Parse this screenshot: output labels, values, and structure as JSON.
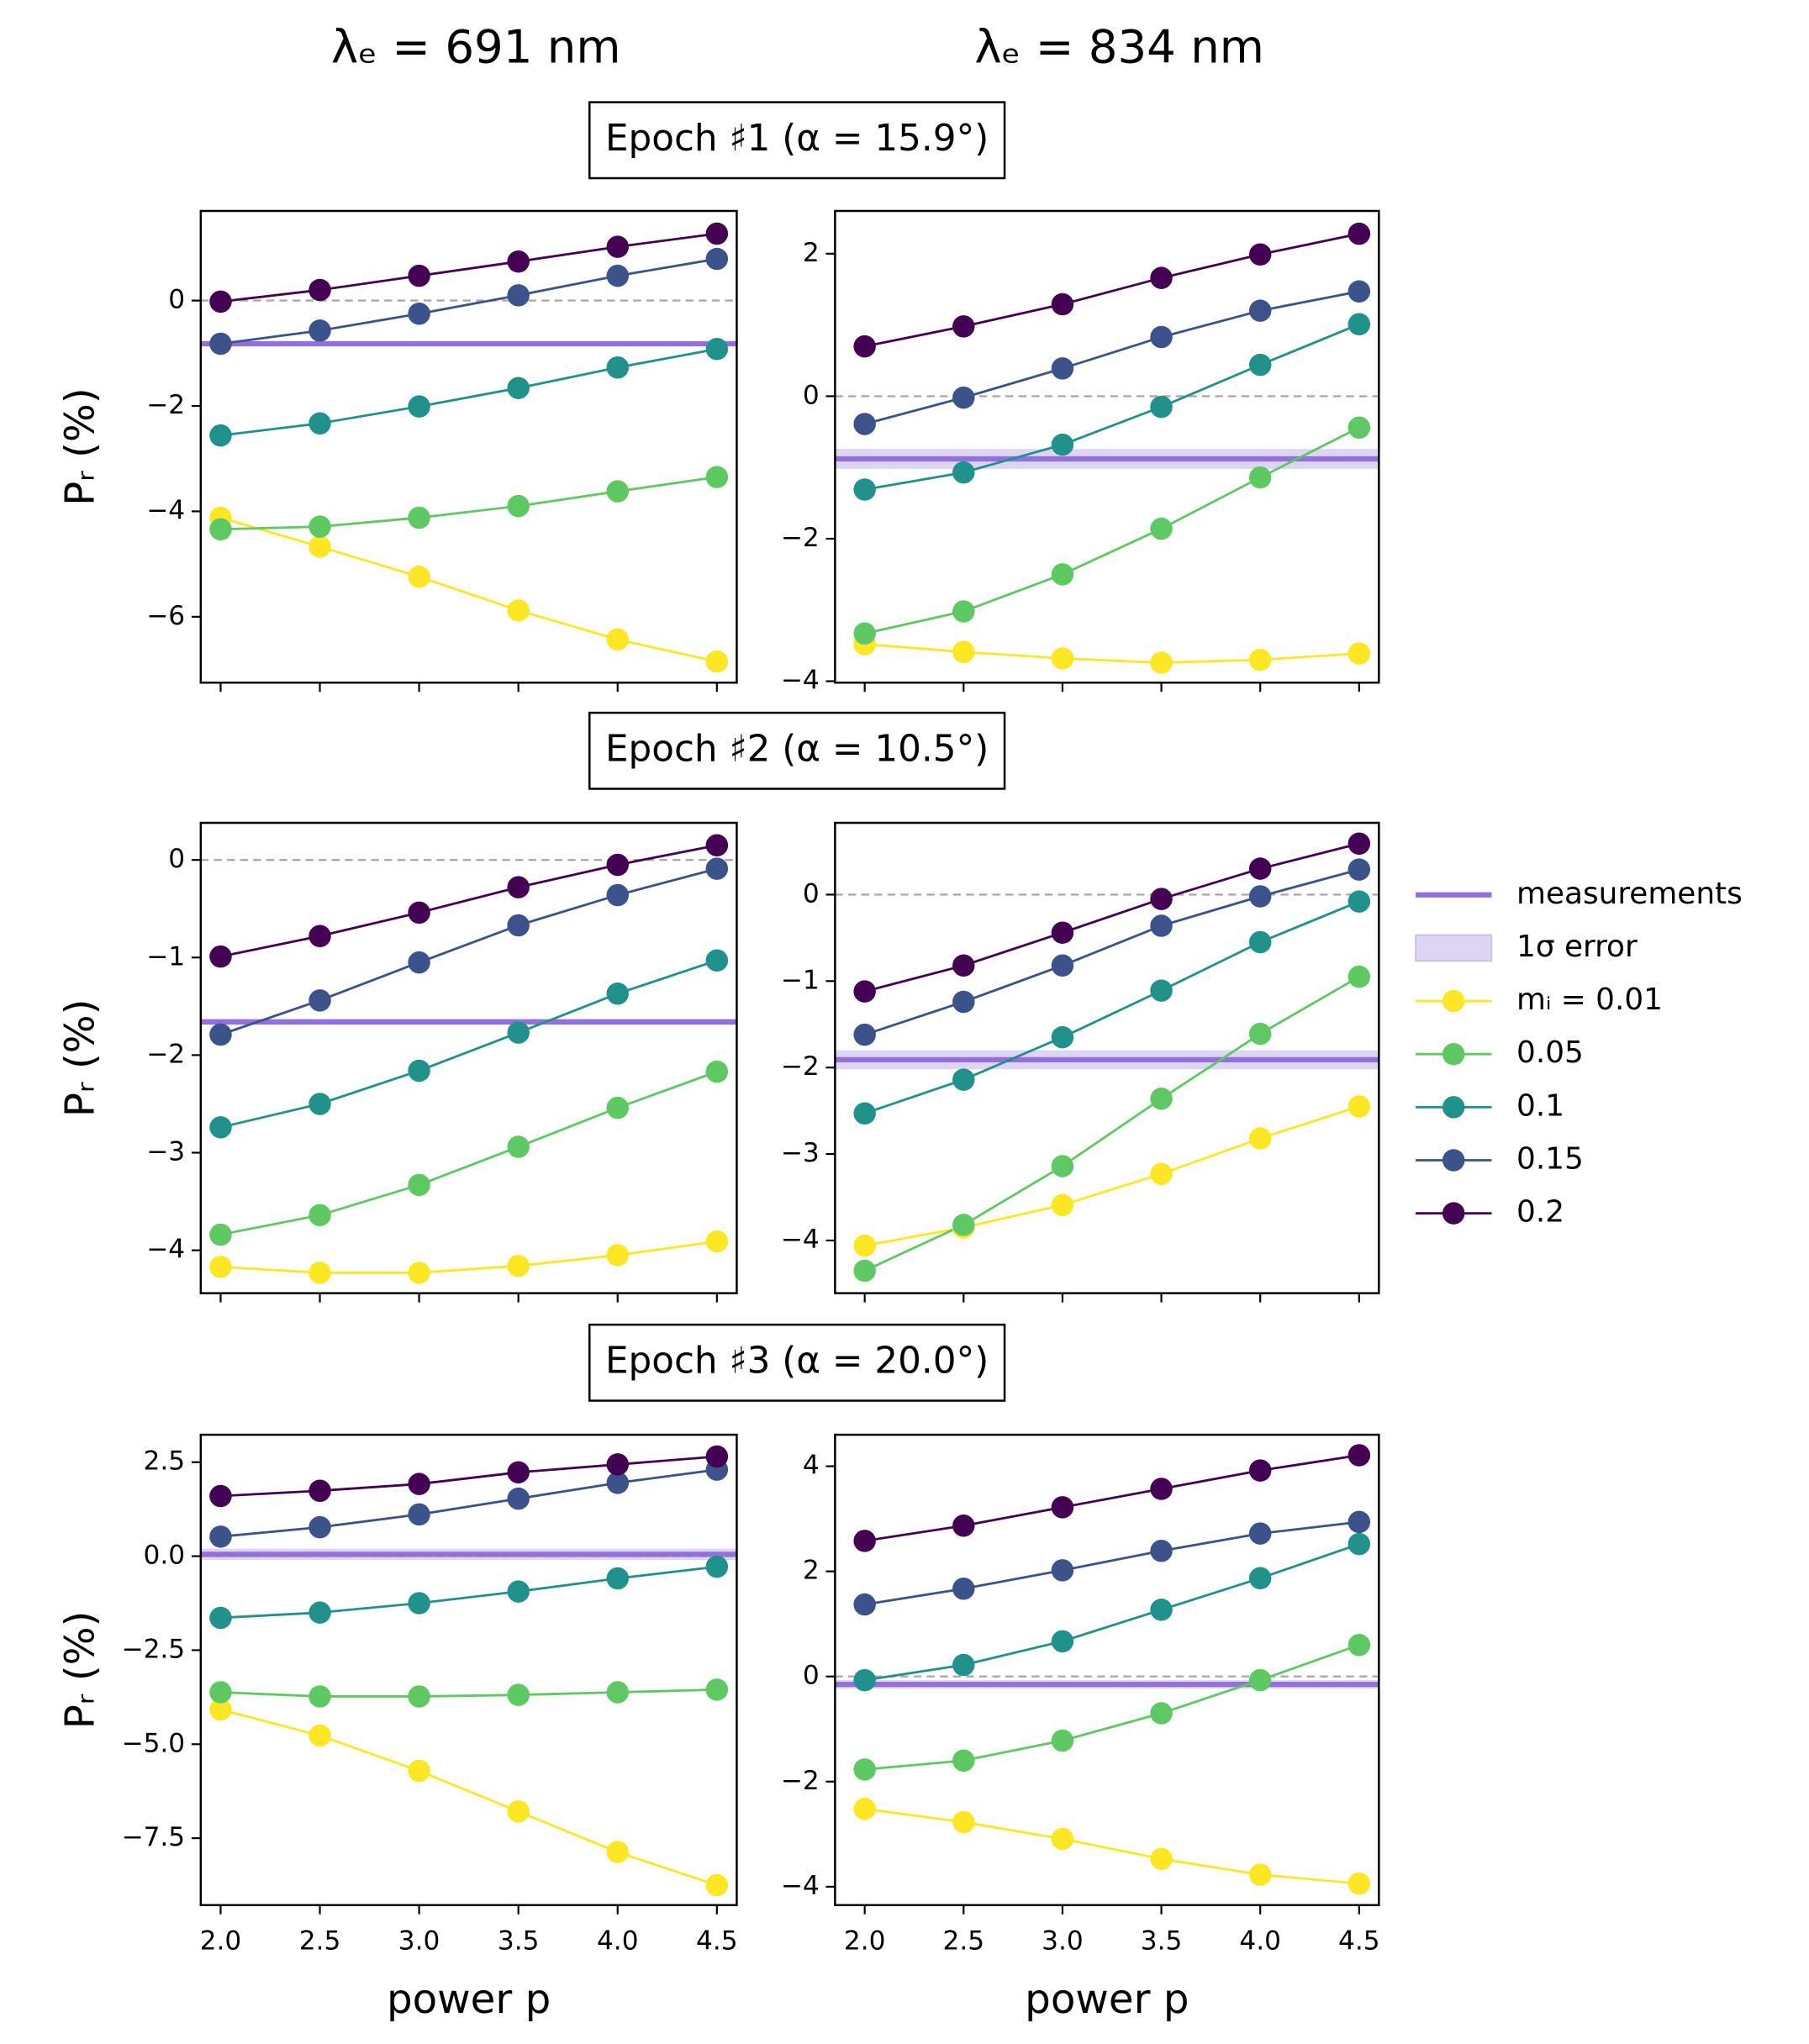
{
  "column_titles": [
    "λₑ = 691 nm",
    "λₑ = 834 nm"
  ],
  "epoch_titles": [
    "Epoch ♯1 (α = 15.9°)",
    "Epoch ♯2  (α = 10.5°)",
    "Epoch ♯3  (α = 20.0°)"
  ],
  "legend": [
    "measurements",
    "1σ error"
  ],
  "chart_data": [
    {
      "type": "line",
      "ylabel": "Pᵣ (%)",
      "x": [
        2.0,
        2.5,
        3.0,
        3.5,
        4.0,
        4.5
      ],
      "xlim": [
        1.9,
        4.6
      ],
      "xticks": [
        {
          "value": 2.0,
          "label": "2.0"
        },
        2.5,
        {
          "value": 3.0,
          "label": "3.0"
        },
        3.5,
        {
          "value": 4.0,
          "label": "4.0"
        },
        4.5
      ],
      "xticklabels": false,
      "ylim": [
        -7.25,
        1.7
      ],
      "yticks": [
        {
          "value": -6,
          "label": "−6"
        },
        {
          "value": -4,
          "label": "−4"
        },
        {
          "value": -2,
          "label": "−2"
        },
        0
      ],
      "ref_line": 0,
      "measurement": -0.82,
      "error": 0.05,
      "measurement_color": "#9370db",
      "series": [
        {
          "name": "mᵢ = 0.01",
          "color": "#fde725",
          "values": [
            -4.12,
            -4.67,
            -5.24,
            -5.88,
            -6.43,
            -6.85
          ]
        },
        {
          "name": "0.05",
          "color": "#5ec962",
          "values": [
            -4.34,
            -4.29,
            -4.12,
            -3.9,
            -3.62,
            -3.35
          ]
        },
        {
          "name": "0.1",
          "color": "#21918c",
          "values": [
            -2.56,
            -2.33,
            -2.01,
            -1.66,
            -1.27,
            -0.92
          ]
        },
        {
          "name": "0.15",
          "color": "#3b528b",
          "values": [
            -0.82,
            -0.57,
            -0.25,
            0.1,
            0.47,
            0.79
          ]
        },
        {
          "name": "0.2",
          "color": "#440154",
          "values": [
            -0.02,
            0.2,
            0.47,
            0.74,
            1.02,
            1.27
          ]
        }
      ]
    },
    {
      "type": "line",
      "x": [
        2.0,
        2.5,
        3.0,
        3.5,
        4.0,
        4.5
      ],
      "xlim": [
        1.85,
        4.6
      ],
      "xticks": [
        {
          "value": 2.0,
          "label": "2.0"
        },
        2.5,
        {
          "value": 3.0,
          "label": "3.0"
        },
        3.5,
        {
          "value": 4.0,
          "label": "4.0"
        },
        4.5
      ],
      "xticklabels": false,
      "ylim": [
        -4.02,
        2.6
      ],
      "yticks": [
        {
          "value": -4,
          "label": "−4"
        },
        {
          "value": -2,
          "label": "−2"
        },
        0,
        2
      ],
      "ref_line": 0,
      "measurement": -0.88,
      "error": 0.14,
      "measurement_color": "#9370db",
      "series": [
        {
          "name": "mᵢ = 0.01",
          "color": "#fde725",
          "values": [
            -3.48,
            -3.59,
            -3.68,
            -3.74,
            -3.7,
            -3.61
          ]
        },
        {
          "name": "0.05",
          "color": "#5ec962",
          "values": [
            -3.33,
            -3.02,
            -2.5,
            -1.86,
            -1.14,
            -0.44
          ]
        },
        {
          "name": "0.1",
          "color": "#21918c",
          "values": [
            -1.31,
            -1.07,
            -0.68,
            -0.15,
            0.44,
            1.01
          ]
        },
        {
          "name": "0.15",
          "color": "#3b528b",
          "values": [
            -0.39,
            -0.02,
            0.39,
            0.83,
            1.2,
            1.47
          ]
        },
        {
          "name": "0.2",
          "color": "#440154",
          "values": [
            0.7,
            0.98,
            1.29,
            1.66,
            1.99,
            2.28
          ]
        }
      ]
    },
    {
      "type": "line",
      "ylabel": "Pᵣ (%)",
      "x": [
        2.0,
        2.5,
        3.0,
        3.5,
        4.0,
        4.5
      ],
      "xlim": [
        1.9,
        4.6
      ],
      "xticks": [
        {
          "value": 2.0,
          "label": "2.0"
        },
        2.5,
        {
          "value": 3.0,
          "label": "3.0"
        },
        3.5,
        {
          "value": 4.0,
          "label": "4.0"
        },
        4.5
      ],
      "xticklabels": false,
      "ylim": [
        -4.44,
        0.38
      ],
      "yticks": [
        {
          "value": -4,
          "label": "−4"
        },
        {
          "value": -3,
          "label": "−3"
        },
        {
          "value": -2,
          "label": "−2"
        },
        {
          "value": -1,
          "label": "−1"
        },
        0
      ],
      "ref_line": 0,
      "measurement": -1.66,
      "error": 0.03,
      "measurement_color": "#9370db",
      "series": [
        {
          "name": "mᵢ = 0.01",
          "color": "#fde725",
          "values": [
            -4.17,
            -4.23,
            -4.23,
            -4.16,
            -4.05,
            -3.91
          ]
        },
        {
          "name": "0.05",
          "color": "#5ec962",
          "values": [
            -3.84,
            -3.64,
            -3.33,
            -2.94,
            -2.54,
            -2.17
          ]
        },
        {
          "name": "0.1",
          "color": "#21918c",
          "values": [
            -2.74,
            -2.5,
            -2.16,
            -1.77,
            -1.37,
            -1.03
          ]
        },
        {
          "name": "0.15",
          "color": "#3b528b",
          "values": [
            -1.79,
            -1.44,
            -1.05,
            -0.67,
            -0.36,
            -0.09
          ]
        },
        {
          "name": "0.2",
          "color": "#440154",
          "values": [
            -0.99,
            -0.78,
            -0.54,
            -0.28,
            -0.05,
            0.15
          ]
        }
      ]
    },
    {
      "type": "line",
      "x": [
        2.0,
        2.5,
        3.0,
        3.5,
        4.0,
        4.5
      ],
      "xlim": [
        1.85,
        4.6
      ],
      "xticks": [
        {
          "value": 2.0,
          "label": "2.0"
        },
        2.5,
        {
          "value": 3.0,
          "label": "3.0"
        },
        3.5,
        {
          "value": 4.0,
          "label": "4.0"
        },
        4.5
      ],
      "xticklabels": false,
      "ylim": [
        -4.61,
        0.83
      ],
      "yticks": [
        {
          "value": -4,
          "label": "−4"
        },
        {
          "value": -3,
          "label": "−3"
        },
        {
          "value": -2,
          "label": "−2"
        },
        {
          "value": -1,
          "label": "−1"
        },
        0
      ],
      "ref_line": 0,
      "measurement": -1.91,
      "error": 0.11,
      "measurement_color": "#9370db",
      "series": [
        {
          "name": "mᵢ = 0.01",
          "color": "#fde725",
          "values": [
            -4.06,
            -3.85,
            -3.59,
            -3.23,
            -2.82,
            -2.45
          ]
        },
        {
          "name": "0.05",
          "color": "#5ec962",
          "values": [
            -4.35,
            -3.82,
            -3.14,
            -2.36,
            -1.61,
            -0.95
          ]
        },
        {
          "name": "0.1",
          "color": "#21918c",
          "values": [
            -2.53,
            -2.14,
            -1.65,
            -1.11,
            -0.55,
            -0.08
          ]
        },
        {
          "name": "0.15",
          "color": "#3b528b",
          "values": [
            -1.62,
            -1.24,
            -0.82,
            -0.36,
            -0.02,
            0.29
          ]
        },
        {
          "name": "0.2",
          "color": "#440154",
          "values": [
            -1.12,
            -0.82,
            -0.44,
            -0.05,
            0.3,
            0.59
          ]
        }
      ]
    },
    {
      "type": "line",
      "ylabel": "Pᵣ (%)",
      "xlabel": "power p",
      "x": [
        2.0,
        2.5,
        3.0,
        3.5,
        4.0,
        4.5
      ],
      "xlim": [
        1.9,
        4.6
      ],
      "xticks": [
        {
          "value": 2.0,
          "label": "2.0"
        },
        2.5,
        {
          "value": 3.0,
          "label": "3.0"
        },
        3.5,
        {
          "value": 4.0,
          "label": "4.0"
        },
        4.5
      ],
      "xticklabels": true,
      "ylim": [
        -9.28,
        3.23
      ],
      "yticks": [
        {
          "value": -7.5,
          "label": "−7.5"
        },
        {
          "value": -5,
          "label": "−5.0"
        },
        {
          "value": -2.5,
          "label": "−2.5"
        },
        {
          "value": 0,
          "label": "0.0"
        },
        2.5
      ],
      "ref_line": 0,
      "measurement": 0.05,
      "error": 0.15,
      "measurement_color": "#9370db",
      "series": [
        {
          "name": "mᵢ = 0.01",
          "color": "#fde725",
          "values": [
            -4.08,
            -4.77,
            -5.71,
            -6.79,
            -7.87,
            -8.75
          ]
        },
        {
          "name": "0.05",
          "color": "#5ec962",
          "values": [
            -3.62,
            -3.73,
            -3.73,
            -3.69,
            -3.62,
            -3.55
          ]
        },
        {
          "name": "0.1",
          "color": "#21918c",
          "values": [
            -1.64,
            -1.5,
            -1.25,
            -0.94,
            -0.59,
            -0.28
          ]
        },
        {
          "name": "0.15",
          "color": "#3b528b",
          "values": [
            0.52,
            0.77,
            1.11,
            1.53,
            1.95,
            2.3
          ]
        },
        {
          "name": "0.2",
          "color": "#440154",
          "values": [
            1.6,
            1.74,
            1.92,
            2.23,
            2.44,
            2.65
          ]
        }
      ]
    },
    {
      "type": "line",
      "xlabel": "power p",
      "x": [
        2.0,
        2.5,
        3.0,
        3.5,
        4.0,
        4.5
      ],
      "xlim": [
        1.85,
        4.6
      ],
      "xticks": [
        {
          "value": 2.0,
          "label": "2.0"
        },
        2.5,
        {
          "value": 3.0,
          "label": "3.0"
        },
        3.5,
        {
          "value": 4.0,
          "label": "4.0"
        },
        4.5
      ],
      "xticklabels": true,
      "ylim": [
        -4.35,
        4.6
      ],
      "yticks": [
        {
          "value": -4,
          "label": "−4"
        },
        {
          "value": -2,
          "label": "−2"
        },
        0,
        2,
        4
      ],
      "ref_line": 0,
      "measurement": -0.15,
      "error": 0.08,
      "measurement_color": "#9370db",
      "series": [
        {
          "name": "mᵢ = 0.01",
          "color": "#fde725",
          "values": [
            -2.52,
            -2.77,
            -3.09,
            -3.47,
            -3.77,
            -3.94
          ]
        },
        {
          "name": "0.05",
          "color": "#5ec962",
          "values": [
            -1.77,
            -1.6,
            -1.22,
            -0.7,
            -0.07,
            0.6
          ]
        },
        {
          "name": "0.1",
          "color": "#21918c",
          "values": [
            -0.07,
            0.22,
            0.67,
            1.27,
            1.87,
            2.52
          ]
        },
        {
          "name": "0.15",
          "color": "#3b528b",
          "values": [
            1.37,
            1.67,
            2.02,
            2.39,
            2.72,
            2.94
          ]
        },
        {
          "name": "0.2",
          "color": "#440154",
          "values": [
            2.58,
            2.87,
            3.22,
            3.57,
            3.92,
            4.21
          ]
        }
      ]
    }
  ]
}
